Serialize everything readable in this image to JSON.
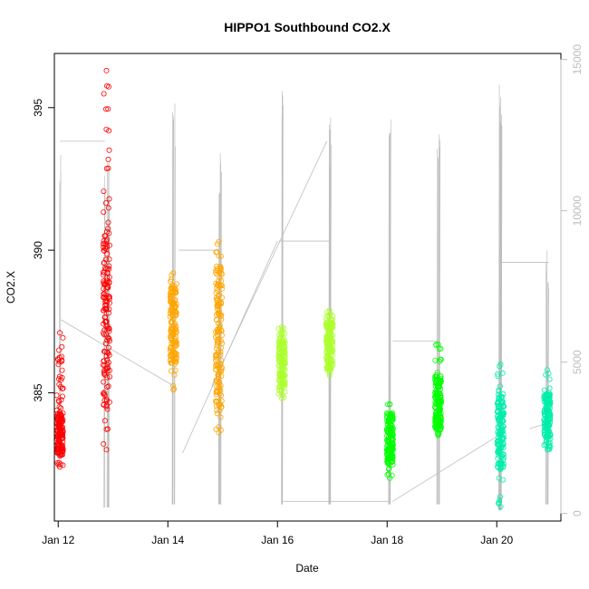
{
  "chart_data": {
    "type": "scatter",
    "title": "HIPPO1 Southbound CO2.X",
    "xlabel": "Date",
    "ylabel": "CO2.X",
    "xlim_days": [
      11.93,
      21.17
    ],
    "ylim": [
      380.5,
      396.9
    ],
    "y2lim": [
      -250,
      15200
    ],
    "x_ticks": [
      {
        "value": 12,
        "label": "Jan 12"
      },
      {
        "value": 14,
        "label": "Jan 14"
      },
      {
        "value": 16,
        "label": "Jan 16"
      },
      {
        "value": 18,
        "label": "Jan 18"
      },
      {
        "value": 20,
        "label": "Jan 20"
      }
    ],
    "y_ticks": [
      {
        "value": 385,
        "label": "385"
      },
      {
        "value": 390,
        "label": "390"
      },
      {
        "value": 395,
        "label": "395"
      }
    ],
    "y2_ticks": [
      {
        "value": 0,
        "label": "0"
      },
      {
        "value": 5000,
        "label": "5000"
      },
      {
        "value": 10000,
        "label": "10000"
      },
      {
        "value": 15000,
        "label": "15000"
      }
    ],
    "colors": {
      "altitude_line": "#bebebe",
      "axis": "#000000",
      "right_axis": "#bdbdbd"
    },
    "series": [
      {
        "color": "#ff0000",
        "clusters": [
          {
            "x": 12.03,
            "y_min": 382.4,
            "y_max": 387.1,
            "dense_min": 382.8,
            "dense_max": 384.3
          },
          {
            "x": 12.88,
            "y_min": 383.0,
            "y_max": 396.3,
            "dense_min": 384.5,
            "dense_max": 391.0
          }
        ]
      },
      {
        "color": "#ffa500",
        "clusters": [
          {
            "x": 14.1,
            "y_min": 385.1,
            "y_max": 389.2,
            "dense_min": 386.0,
            "dense_max": 388.8
          },
          {
            "x": 14.93,
            "y_min": 383.6,
            "y_max": 390.3,
            "dense_min": 384.5,
            "dense_max": 389.5
          }
        ]
      },
      {
        "color": "#adff2f",
        "clusters": [
          {
            "x": 16.08,
            "y_min": 384.8,
            "y_max": 387.3,
            "dense_min": 385.2,
            "dense_max": 386.8
          },
          {
            "x": 16.95,
            "y_min": 385.6,
            "y_max": 387.9,
            "dense_min": 385.8,
            "dense_max": 387.5
          }
        ]
      },
      {
        "color": "#00ff00",
        "clusters": [
          {
            "x": 18.05,
            "y_min": 382.0,
            "y_max": 384.6,
            "dense_min": 382.5,
            "dense_max": 384.3
          },
          {
            "x": 18.93,
            "y_min": 383.5,
            "y_max": 386.7,
            "dense_min": 383.7,
            "dense_max": 385.6
          }
        ]
      },
      {
        "color": "#00eeaa",
        "clusters": [
          {
            "x": 20.07,
            "y_min": 381.0,
            "y_max": 386.0,
            "dense_min": 382.3,
            "dense_max": 385.0
          },
          {
            "x": 20.92,
            "y_min": 383.0,
            "y_max": 385.8,
            "dense_min": 383.4,
            "dense_max": 385.0
          }
        ]
      }
    ]
  }
}
